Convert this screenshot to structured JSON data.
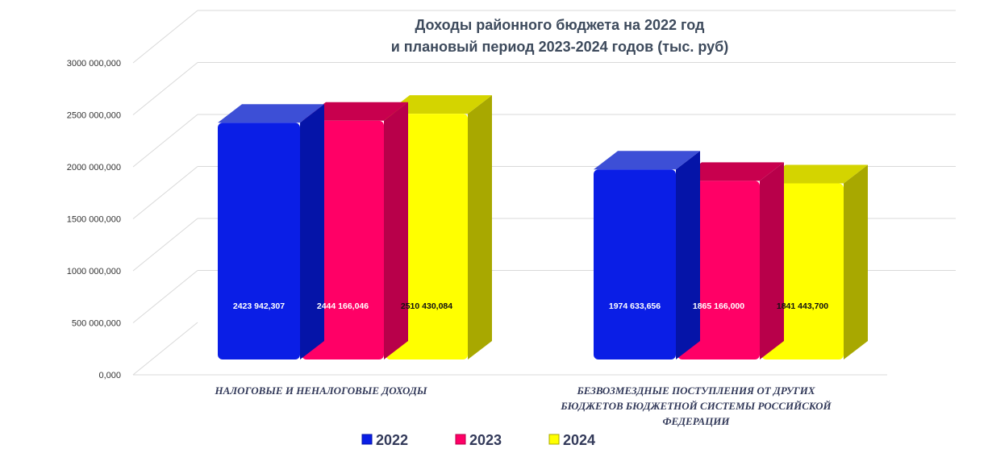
{
  "chart_data": {
    "type": "bar",
    "title_lines": [
      "Доходы районного  бюджета на 2022 год",
      "и плановый  период 2023-2024 годов  (тыс. руб)"
    ],
    "categories": [
      [
        "НАЛОГОВЫЕ И НЕНАЛОГОВЫЕ ДОХОДЫ"
      ],
      [
        "БЕЗВОЗМЕЗДНЫЕ  ПОСТУПЛЕНИЯ ОТ ДРУГИХ",
        "БЮДЖЕТОВ БЮДЖЕТНОЙ СИСТЕМЫ РОССИЙСКОЙ",
        "ФЕДЕРАЦИИ"
      ]
    ],
    "series": [
      {
        "name": "2022",
        "color": "#0a1ee6",
        "top_color": "#3d4fd6",
        "side_color": "#0514a8",
        "label_color": "#ffffff",
        "values": [
          2423942.307,
          1974633.656
        ],
        "labels": [
          "2423 942,307",
          "1974 633,656"
        ]
      },
      {
        "name": "2023",
        "color": "#ff0066",
        "top_color": "#c8004e",
        "side_color": "#b8004a",
        "label_color": "#ffffff",
        "values": [
          2444166.046,
          1865166.0
        ],
        "labels": [
          "2444 166,046",
          "1865 166,000"
        ]
      },
      {
        "name": "2024",
        "color": "#ffff00",
        "top_color": "#d4d400",
        "side_color": "#a8a800",
        "label_color": "#111111",
        "values": [
          2510430.084,
          1841443.7
        ],
        "labels": [
          "2510 430,084",
          "1841 443,700"
        ]
      }
    ],
    "y_ticks": [
      {
        "value": 0,
        "label": "0,000"
      },
      {
        "value": 500000,
        "label": "500 000,000"
      },
      {
        "value": 1000000,
        "label": "1000 000,000"
      },
      {
        "value": 1500000,
        "label": "1500 000,000"
      },
      {
        "value": 2000000,
        "label": "2000 000,000"
      },
      {
        "value": 2500000,
        "label": "2500 000,000"
      },
      {
        "value": 3000000,
        "label": "3000 000,000"
      }
    ],
    "ylim": [
      0,
      3000000
    ],
    "grid": true,
    "legend_position": "bottom"
  }
}
